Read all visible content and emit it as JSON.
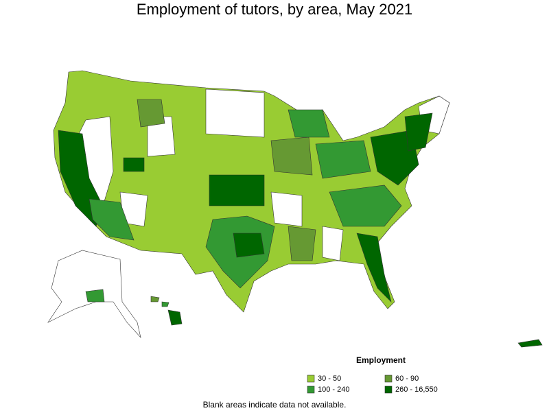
{
  "title": "Employment of tutors, by area, May 2021",
  "legend": {
    "title": "Employment",
    "items": [
      {
        "label": "30 - 50",
        "color": "#99cc33"
      },
      {
        "label": "60 - 90",
        "color": "#669933"
      },
      {
        "label": "100 - 240",
        "color": "#339933"
      },
      {
        "label": "260 - 16,550",
        "color": "#006600"
      }
    ]
  },
  "note": "Blank areas indicate data not available."
}
